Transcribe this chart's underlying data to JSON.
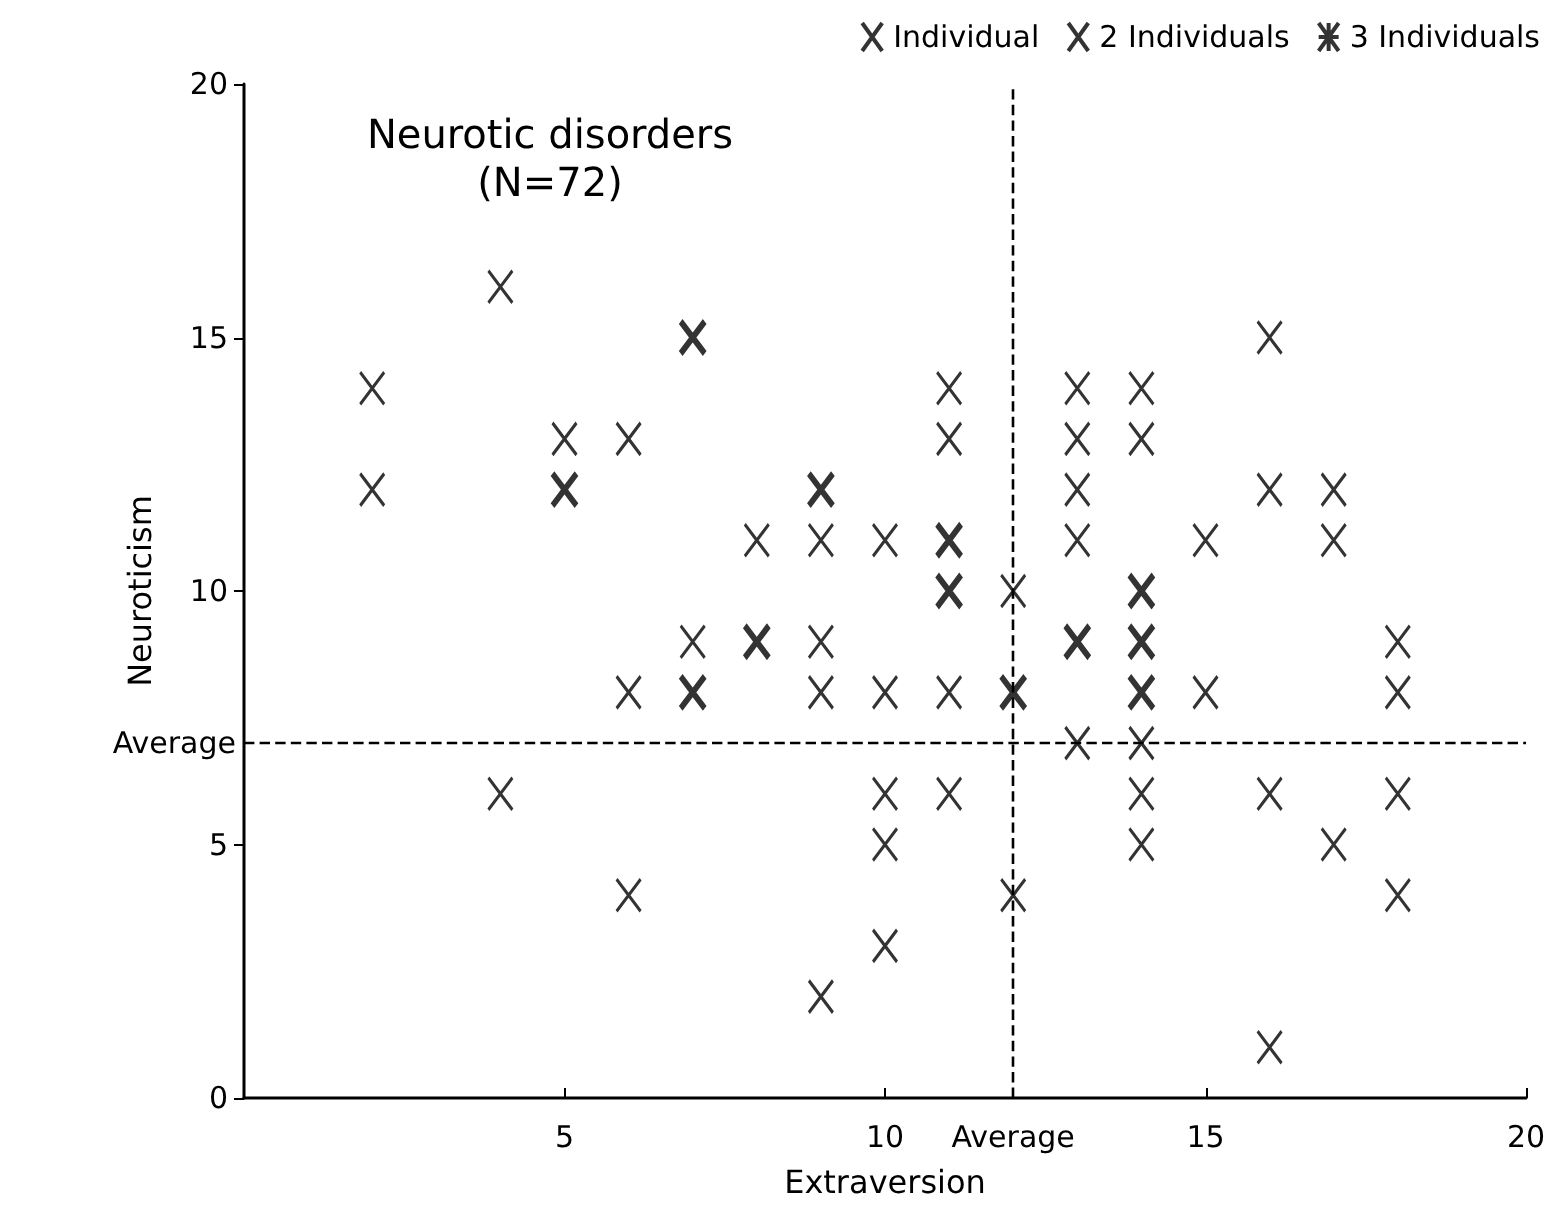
{
  "chart_data": {
    "type": "scatter",
    "title": "Neurotic disorders",
    "subtitle": "(N=72)",
    "xlabel": "Extraversion",
    "ylabel": "Neuroticism",
    "xlim": [
      0,
      20
    ],
    "xticks": [
      5,
      10,
      15,
      20
    ],
    "ylim": [
      0,
      20
    ],
    "yticks": [
      0,
      5,
      10,
      15,
      20
    ],
    "grid": false,
    "legend": "top right",
    "series": [
      {
        "name": "Individual",
        "color": "#000000",
        "marker": "cross",
        "x": [
          2,
          2,
          4,
          4,
          5,
          6,
          6,
          6,
          7,
          8,
          9,
          9,
          9,
          9,
          10,
          10,
          10,
          10,
          10,
          11,
          11,
          11,
          11,
          12,
          12,
          13,
          13,
          13,
          13,
          13,
          14,
          14,
          14,
          14,
          14,
          15,
          15,
          16,
          16,
          16,
          16,
          17,
          17,
          17,
          18,
          18,
          18,
          18
        ],
        "values": [
          14,
          12,
          16,
          6,
          13,
          13,
          8,
          4,
          9,
          11,
          11,
          9,
          8,
          2,
          11,
          8,
          6,
          5,
          3,
          14,
          13,
          8,
          6,
          10,
          4,
          14,
          13,
          12,
          11,
          7,
          14,
          13,
          7,
          6,
          5,
          11,
          8,
          15,
          12,
          6,
          1,
          12,
          11,
          5,
          9,
          8,
          6,
          4
        ]
      },
      {
        "name": "2 Individuals",
        "color": "#000000",
        "marker": "cross",
        "x": [
          5,
          7,
          7,
          8,
          9,
          11,
          11,
          12,
          13,
          14,
          14,
          14
        ],
        "values": [
          12,
          15,
          8,
          9,
          12,
          11,
          10,
          8,
          9,
          10,
          9,
          8
        ]
      },
      {
        "name": "3 Individuals",
        "color": "#000000",
        "marker": "star"
      }
    ],
    "ref_lines": [
      {
        "axis": "x",
        "value": 12,
        "label": "Average",
        "line_style": "dashed",
        "color": "#000000"
      },
      {
        "axis": "y",
        "value": 7,
        "label": "Average",
        "line_style": "dashed",
        "color": "#000000"
      }
    ]
  }
}
